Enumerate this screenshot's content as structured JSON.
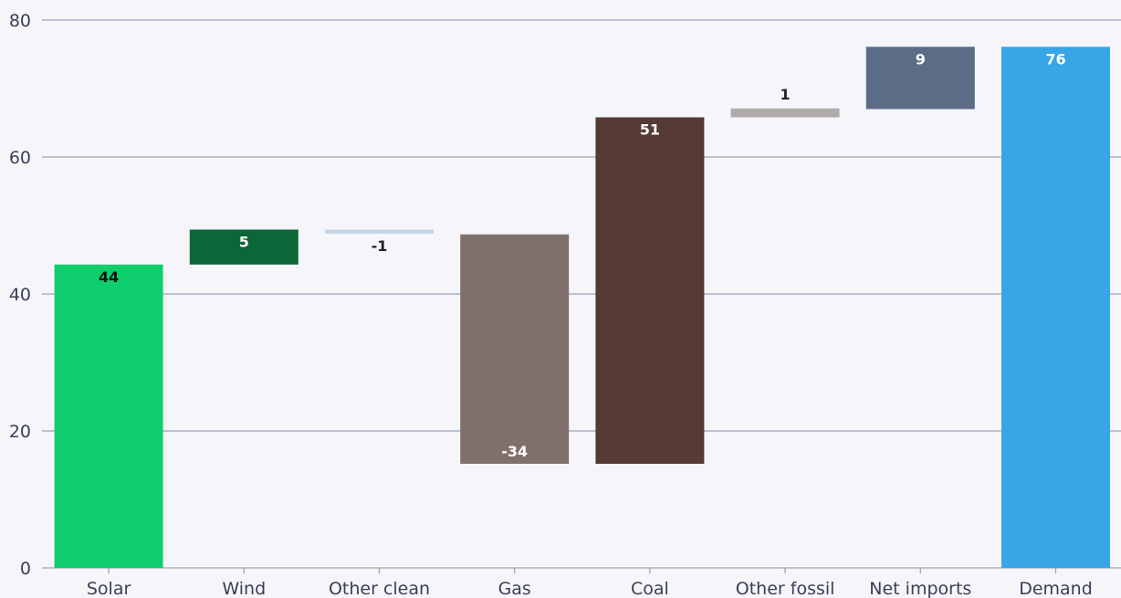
{
  "chart_data": {
    "type": "bar",
    "subtype": "waterfall",
    "categories": [
      "Solar",
      "Wind",
      "Other clean",
      "Gas",
      "Coal",
      "Other fossil",
      "Net imports",
      "Demand"
    ],
    "bars": [
      {
        "category": "Solar",
        "start": 0,
        "end": 44.3,
        "label": "44",
        "color": "#0fce6e",
        "label_color": "#111111",
        "label_pos": "inside-top"
      },
      {
        "category": "Wind",
        "start": 44.3,
        "end": 49.4,
        "label": "5",
        "color": "#0b6638",
        "label_color": "#ffffff",
        "label_pos": "inside-top"
      },
      {
        "category": "Other clean",
        "start": 49.4,
        "end": 48.8,
        "label": "-1",
        "color": "#c3d6e6",
        "label_color": "#222222",
        "label_pos": "below"
      },
      {
        "category": "Gas",
        "start": 48.7,
        "end": 15.2,
        "label": "-34",
        "color": "#80706b",
        "label_color": "#ffffff",
        "label_pos": "inside-bottom"
      },
      {
        "category": "Coal",
        "start": 15.2,
        "end": 65.8,
        "label": "51",
        "color": "#553a35",
        "label_color": "#ffffff",
        "label_pos": "inside-top"
      },
      {
        "category": "Other fossil",
        "start": 65.8,
        "end": 67.1,
        "label": "1",
        "color": "#b0abab",
        "label_color": "#222222",
        "label_pos": "above"
      },
      {
        "category": "Net imports",
        "start": 67.0,
        "end": 76.1,
        "label": "9",
        "color": "#5c6c87",
        "label_color": "#ffffff",
        "label_pos": "inside-top"
      },
      {
        "category": "Demand",
        "start": 0,
        "end": 76.1,
        "label": "76",
        "color": "#38a5e6",
        "label_color": "#ffffff",
        "label_pos": "inside-top"
      }
    ],
    "yticks": [
      "0",
      "20",
      "40",
      "60",
      "80"
    ],
    "ytick_values": [
      0,
      20,
      40,
      60,
      80
    ],
    "ylim": [
      0,
      80
    ],
    "grid": true,
    "title": "",
    "xlabel": "",
    "ylabel": ""
  }
}
